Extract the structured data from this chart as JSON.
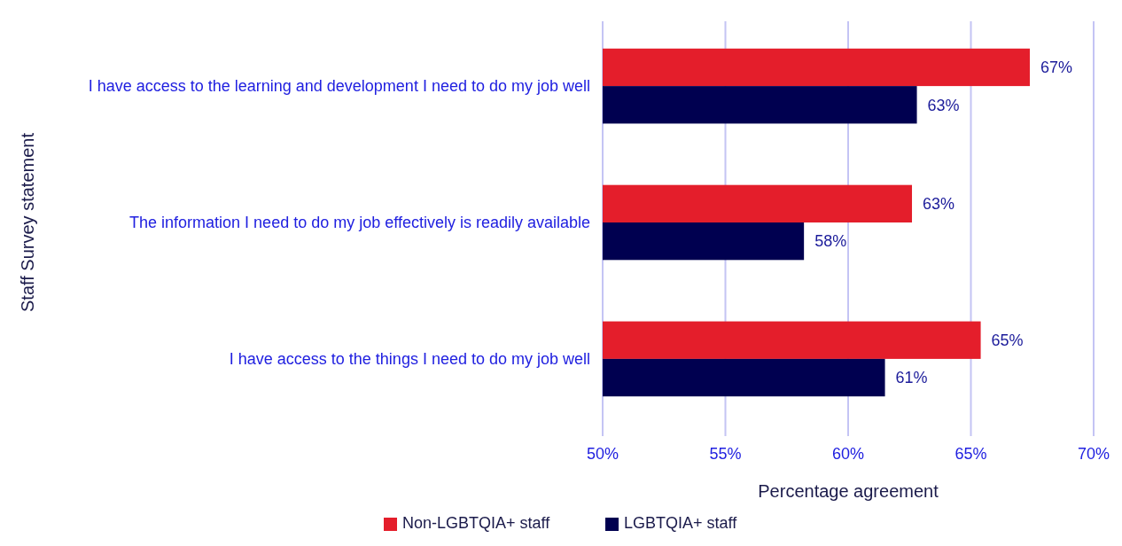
{
  "chart_data": {
    "type": "bar",
    "orientation": "horizontal",
    "xlabel": "Percentage agreement",
    "ylabel": "Staff Survey statement",
    "categories": [
      "I have access to the learning and development I need to do my job well",
      "The information I need to do my job effectively is readily available",
      "I have access to the things I need to do my job well"
    ],
    "series": [
      {
        "name": "Non-LGBTQIA+ staff",
        "color": "#e41e2b",
        "values": [
          67.4,
          62.6,
          65.4
        ],
        "value_labels": [
          "67%",
          "63%",
          "65%"
        ]
      },
      {
        "name": "LGBTQIA+ staff",
        "color": "#000050",
        "values": [
          62.8,
          58.2,
          61.5
        ],
        "value_labels": [
          "63%",
          "58%",
          "61%"
        ]
      }
    ],
    "xlim": [
      50,
      70
    ],
    "xticks": [
      {
        "value": 50,
        "label": "50%"
      },
      {
        "value": 55,
        "label": "55%"
      },
      {
        "value": 60,
        "label": "60%"
      },
      {
        "value": 65,
        "label": "65%"
      },
      {
        "value": 70,
        "label": "70%"
      }
    ],
    "grid": "x",
    "legend": "bottom"
  }
}
